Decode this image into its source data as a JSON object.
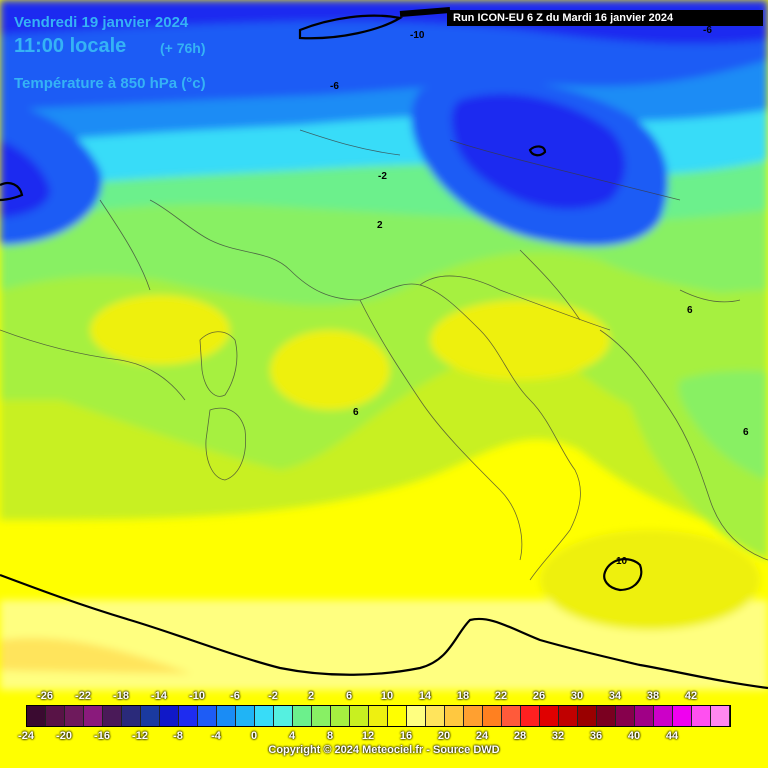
{
  "header": {
    "date": "Vendredi 19 janvier 2024",
    "time": "11:00 locale",
    "step": "(+ 76h)",
    "parameter": "Température à 850 hPa (°c)",
    "run": "Run ICON-EU 6 Z du Mardi 16 janvier 2024"
  },
  "contour_labels": [
    "-10",
    "-6",
    "-6",
    "-2",
    "2",
    "6",
    "6",
    "6",
    "10"
  ],
  "legend": {
    "top_ticks": [
      "-26",
      "-22",
      "-18",
      "-14",
      "-10",
      "-6",
      "-2",
      "2",
      "6",
      "10",
      "14",
      "18",
      "22",
      "26",
      "30",
      "34",
      "38",
      "42"
    ],
    "bottom_ticks": [
      "-24",
      "-20",
      "-16",
      "-12",
      "-8",
      "-4",
      "0",
      "4",
      "8",
      "12",
      "16",
      "20",
      "24",
      "28",
      "32",
      "36",
      "40",
      "44"
    ],
    "colors": [
      "#3a0a30",
      "#581346",
      "#6e1a5c",
      "#8a1a7c",
      "#4a1a58",
      "#2a2a7a",
      "#1a3aa0",
      "#1018c8",
      "#1e2cf0",
      "#1e5cf5",
      "#1a8cf5",
      "#20b4f5",
      "#38dcf8",
      "#55f0e0",
      "#6cf08c",
      "#88f064",
      "#a6f040",
      "#c8f020",
      "#eef010",
      "#ffff00",
      "#ffff80",
      "#ffe45c",
      "#ffc840",
      "#ffa030",
      "#ff8020",
      "#ff5a3a",
      "#ff2020",
      "#e00000",
      "#c00000",
      "#9a0000",
      "#7a0020",
      "#86004c",
      "#a00086",
      "#cc00c8",
      "#f000f0",
      "#ff50f0",
      "#ff88f0"
    ],
    "copyright": "Copyright © 2024 Meteociel.fr - Source DWD"
  }
}
